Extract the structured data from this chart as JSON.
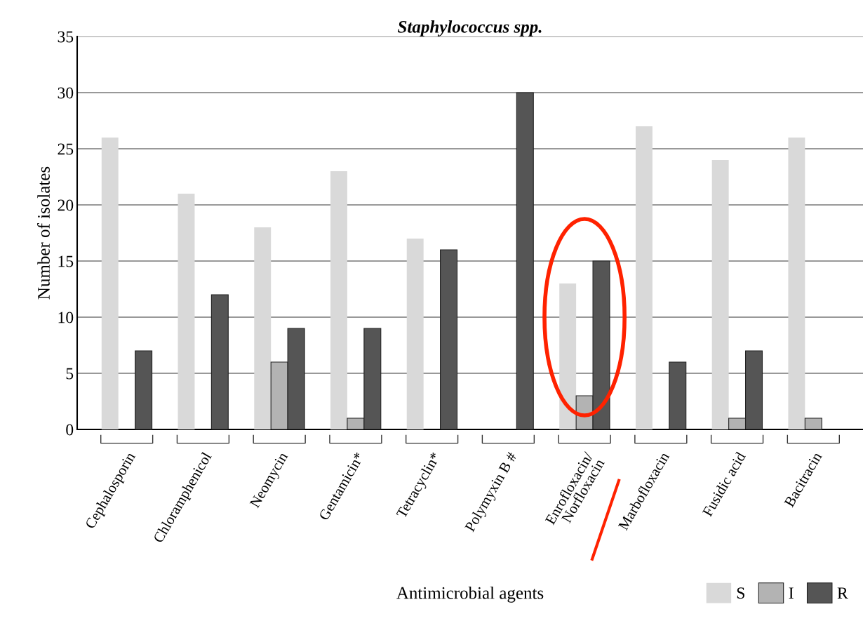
{
  "chart_data": {
    "type": "bar",
    "title": "Staphylococcus spp.",
    "xlabel": "Antimicrobial agents",
    "ylabel": "Number of isolates",
    "categories": [
      "Cephalosporin",
      "Chloramphenicol",
      "Neomycin",
      "Gentamicin*",
      "Tetracyclin*",
      "Polymyxin B #",
      "Enrofloxacin/\nNorfloxacin",
      "Marbofloxacin",
      "Fusidic acid",
      "Bacitracin"
    ],
    "series": [
      {
        "name": "S",
        "color": "#d9d9d9",
        "values": [
          26,
          21,
          18,
          23,
          17,
          null,
          13,
          27,
          24,
          26
        ]
      },
      {
        "name": "I",
        "color": "#b3b3b3",
        "values": [
          null,
          null,
          6,
          1,
          null,
          null,
          3,
          null,
          1,
          1
        ]
      },
      {
        "name": "R",
        "color": "#555555",
        "values": [
          7,
          12,
          9,
          9,
          16,
          30,
          15,
          6,
          7,
          null
        ]
      }
    ],
    "ylim": [
      0,
      35
    ],
    "yticks": [
      0,
      5,
      10,
      15,
      20,
      25,
      30,
      35
    ],
    "grid": "y",
    "legend": "bottom right"
  }
}
